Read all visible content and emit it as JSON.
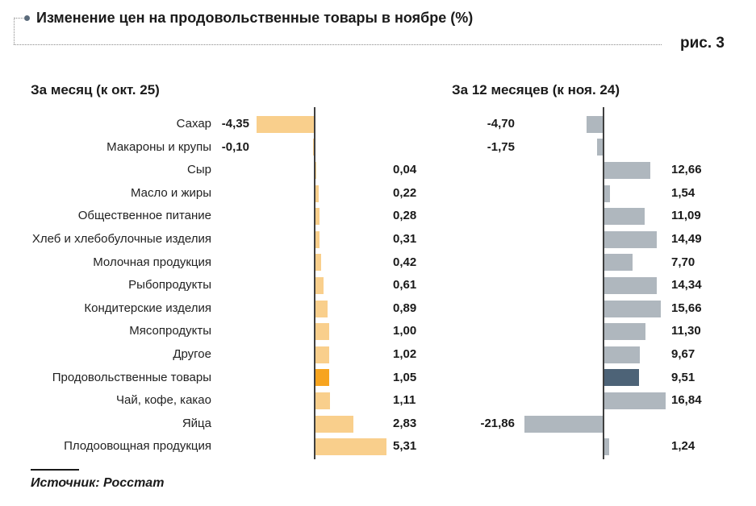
{
  "title": "Изменение цен на продовольственные товары в ноябре (%)",
  "figure_label": "рис. 3",
  "source": "Источник: Росстат",
  "panels": {
    "month_header": "За месяц (к окт. 25)",
    "year_header": "За 12 месяцев (к ноя. 24)"
  },
  "colors": {
    "bar_month": "#f9cf8c",
    "bar_month_highlight": "#f7a41f",
    "bar_year": "#afb7be",
    "bar_year_highlight": "#4d6377",
    "axis": "#3f3f3f"
  },
  "chart_data": {
    "type": "bar",
    "orientation": "horizontal",
    "title": "Изменение цен на продовольственные товары в ноябре (%)",
    "categories": [
      "Сахар",
      "Макароны и крупы",
      "Сыр",
      "Масло и жиры",
      "Общественное питание",
      "Хлеб и хлебобулочные изделия",
      "Молочная продукция",
      "Рыбопродукты",
      "Кондитерские изделия",
      "Мясопродукты",
      "Другое",
      "Продовольственные товары",
      "Чай, кофе, какао",
      "Яйца",
      "Плодоовощная продукция"
    ],
    "series": [
      {
        "name": "За месяц (к окт. 25)",
        "values": [
          -4.35,
          -0.1,
          0.04,
          0.22,
          0.28,
          0.31,
          0.42,
          0.61,
          0.89,
          1.0,
          1.02,
          1.05,
          1.11,
          2.83,
          5.31
        ],
        "labels": [
          "-4,35",
          "-0,10",
          "0,04",
          "0,22",
          "0,28",
          "0,31",
          "0,42",
          "0,61",
          "0,89",
          "1,00",
          "1,02",
          "1,05",
          "1,11",
          "2,83",
          "5,31"
        ]
      },
      {
        "name": "За 12 месяцев (к ноя. 24)",
        "values": [
          -4.7,
          -1.75,
          12.66,
          1.54,
          11.09,
          14.49,
          7.7,
          14.34,
          15.66,
          11.3,
          9.67,
          9.51,
          16.84,
          -21.86,
          1.24
        ],
        "labels": [
          "-4,70",
          "-1,75",
          "12,66",
          "1,54",
          "11,09",
          "14,49",
          "7,70",
          "14,34",
          "15,66",
          "11,30",
          "9,67",
          "9,51",
          "16,84",
          "-21,86",
          "1,24"
        ]
      }
    ],
    "highlight_category": "Продовольственные товары",
    "value_label_format": "comma-decimal",
    "grid": false,
    "legend_position": "none"
  }
}
